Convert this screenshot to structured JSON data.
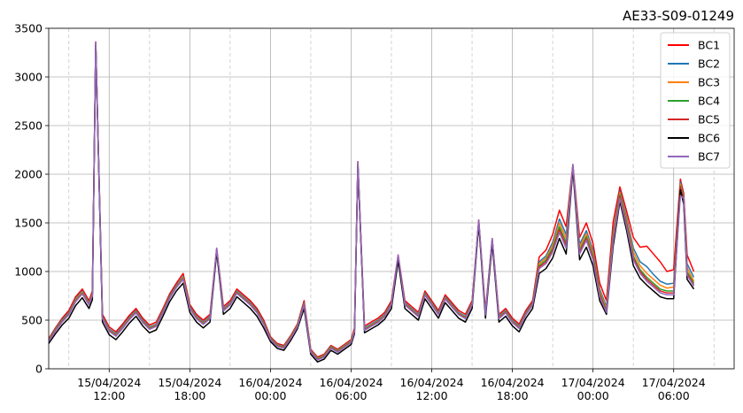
{
  "chart_data": {
    "type": "line",
    "title": "AE33-S09-01249",
    "xlabel": "",
    "ylabel": "",
    "x_range": [
      "2024-04-15 07:30",
      "2024-04-17 10:30"
    ],
    "ylim": [
      0,
      3500
    ],
    "yticks": [
      0,
      500,
      1000,
      1500,
      2000,
      2500,
      3000,
      3500
    ],
    "xticks": [
      {
        "t": "2024-04-15 12:00",
        "label": [
          "15/04/2024",
          "12:00"
        ]
      },
      {
        "t": "2024-04-15 18:00",
        "label": [
          "15/04/2024",
          "18:00"
        ]
      },
      {
        "t": "2024-04-16 00:00",
        "label": [
          "16/04/2024",
          "00:00"
        ]
      },
      {
        "t": "2024-04-16 06:00",
        "label": [
          "16/04/2024",
          "06:00"
        ]
      },
      {
        "t": "2024-04-16 12:00",
        "label": [
          "16/04/2024",
          "12:00"
        ]
      },
      {
        "t": "2024-04-16 18:00",
        "label": [
          "16/04/2024",
          "18:00"
        ]
      },
      {
        "t": "2024-04-17 00:00",
        "label": [
          "17/04/2024",
          "00:00"
        ]
      },
      {
        "t": "2024-04-17 06:00",
        "label": [
          "17/04/2024",
          "06:00"
        ]
      }
    ],
    "minor_grid_times": [
      "2024-04-15 09:00",
      "2024-04-15 15:00",
      "2024-04-15 21:00",
      "2024-04-16 03:00",
      "2024-04-16 09:00",
      "2024-04-16 15:00",
      "2024-04-16 21:00",
      "2024-04-17 03:00",
      "2024-04-17 09:00"
    ],
    "grid": true,
    "legend_position": "top-right",
    "x": [
      "2024-04-15 07:30",
      "2024-04-15 08:00",
      "2024-04-15 08:30",
      "2024-04-15 09:00",
      "2024-04-15 09:30",
      "2024-04-15 10:00",
      "2024-04-15 10:30",
      "2024-04-15 10:45",
      "2024-04-15 11:00",
      "2024-04-15 11:30",
      "2024-04-15 12:00",
      "2024-04-15 12:30",
      "2024-04-15 13:00",
      "2024-04-15 13:30",
      "2024-04-15 14:00",
      "2024-04-15 14:30",
      "2024-04-15 15:00",
      "2024-04-15 15:30",
      "2024-04-15 16:00",
      "2024-04-15 16:30",
      "2024-04-15 17:00",
      "2024-04-15 17:30",
      "2024-04-15 18:00",
      "2024-04-15 18:30",
      "2024-04-15 19:00",
      "2024-04-15 19:30",
      "2024-04-15 20:00",
      "2024-04-15 20:30",
      "2024-04-15 21:00",
      "2024-04-15 21:30",
      "2024-04-15 22:00",
      "2024-04-15 22:30",
      "2024-04-15 23:00",
      "2024-04-15 23:30",
      "2024-04-16 00:00",
      "2024-04-16 00:30",
      "2024-04-16 01:00",
      "2024-04-16 01:30",
      "2024-04-16 02:00",
      "2024-04-16 02:30",
      "2024-04-16 03:00",
      "2024-04-16 03:30",
      "2024-04-16 04:00",
      "2024-04-16 04:30",
      "2024-04-16 05:00",
      "2024-04-16 05:30",
      "2024-04-16 06:00",
      "2024-04-16 06:15",
      "2024-04-16 06:30",
      "2024-04-16 07:00",
      "2024-04-16 07:30",
      "2024-04-16 08:00",
      "2024-04-16 08:30",
      "2024-04-16 09:00",
      "2024-04-16 09:30",
      "2024-04-16 10:00",
      "2024-04-16 10:30",
      "2024-04-16 11:00",
      "2024-04-16 11:30",
      "2024-04-16 12:00",
      "2024-04-16 12:30",
      "2024-04-16 13:00",
      "2024-04-16 13:30",
      "2024-04-16 14:00",
      "2024-04-16 14:30",
      "2024-04-16 15:00",
      "2024-04-16 15:30",
      "2024-04-16 16:00",
      "2024-04-16 16:30",
      "2024-04-16 17:00",
      "2024-04-16 17:30",
      "2024-04-16 18:00",
      "2024-04-16 18:30",
      "2024-04-16 19:00",
      "2024-04-16 19:30",
      "2024-04-16 20:00",
      "2024-04-16 20:30",
      "2024-04-16 21:00",
      "2024-04-16 21:30",
      "2024-04-16 22:00",
      "2024-04-16 22:30",
      "2024-04-16 23:00",
      "2024-04-16 23:30",
      "2024-04-17 00:00",
      "2024-04-17 00:30",
      "2024-04-17 01:00",
      "2024-04-17 01:30",
      "2024-04-17 02:00",
      "2024-04-17 02:30",
      "2024-04-17 03:00",
      "2024-04-17 03:30",
      "2024-04-17 04:00",
      "2024-04-17 04:30",
      "2024-04-17 05:00",
      "2024-04-17 05:30",
      "2024-04-17 06:00",
      "2024-04-17 06:30",
      "2024-04-17 06:45",
      "2024-04-17 07:00",
      "2024-04-17 07:30"
    ],
    "series": [
      {
        "name": "BC1",
        "color": "#ff0000",
        "values": [
          310,
          420,
          520,
          600,
          740,
          820,
          700,
          800,
          3360,
          560,
          430,
          380,
          460,
          550,
          620,
          520,
          450,
          480,
          620,
          770,
          880,
          980,
          660,
          560,
          500,
          560,
          1240,
          640,
          700,
          820,
          760,
          700,
          620,
          500,
          330,
          260,
          240,
          340,
          460,
          700,
          200,
          120,
          150,
          240,
          200,
          250,
          300,
          420,
          2130,
          440,
          480,
          520,
          580,
          700,
          1170,
          700,
          640,
          580,
          800,
          700,
          600,
          760,
          680,
          600,
          560,
          700,
          1530,
          600,
          1340,
          560,
          620,
          520,
          460,
          600,
          700,
          1150,
          1220,
          1380,
          1630,
          1460,
          2100,
          1350,
          1500,
          1290,
          880,
          700,
          1510,
          1870,
          1620,
          1350,
          1250,
          1260,
          1180,
          1100,
          1000,
          1020,
          1950,
          1800,
          1170,
          1000
        ]
      },
      {
        "name": "BC2",
        "color": "#1f77b4",
        "values": [
          300,
          410,
          505,
          580,
          720,
          800,
          680,
          780,
          3350,
          540,
          410,
          360,
          440,
          530,
          600,
          500,
          430,
          460,
          600,
          750,
          860,
          950,
          640,
          540,
          480,
          540,
          1230,
          620,
          680,
          800,
          740,
          680,
          600,
          480,
          320,
          250,
          230,
          330,
          450,
          680,
          190,
          110,
          140,
          230,
          190,
          240,
          290,
          400,
          2120,
          420,
          460,
          500,
          560,
          680,
          1160,
          680,
          620,
          560,
          780,
          680,
          580,
          740,
          660,
          580,
          540,
          680,
          1520,
          580,
          1330,
          540,
          600,
          500,
          440,
          580,
          680,
          1100,
          1160,
          1300,
          1540,
          1380,
          2090,
          1280,
          1420,
          1220,
          820,
          640,
          1410,
          1830,
          1560,
          1240,
          1100,
          1050,
          970,
          900,
          870,
          880,
          1920,
          1770,
          1080,
          940
        ]
      },
      {
        "name": "BC3",
        "color": "#ff7f0e",
        "values": [
          295,
          400,
          495,
          570,
          710,
          790,
          670,
          770,
          3345,
          530,
          400,
          350,
          430,
          520,
          590,
          490,
          420,
          450,
          590,
          740,
          850,
          940,
          630,
          530,
          470,
          530,
          1225,
          610,
          670,
          790,
          730,
          670,
          590,
          470,
          315,
          245,
          225,
          325,
          445,
          670,
          185,
          105,
          135,
          225,
          185,
          235,
          285,
          395,
          2115,
          410,
          450,
          490,
          550,
          670,
          1150,
          670,
          610,
          550,
          770,
          670,
          570,
          730,
          650,
          570,
          530,
          670,
          1515,
          570,
          1320,
          530,
          590,
          490,
          430,
          570,
          670,
          1080,
          1140,
          1270,
          1500,
          1340,
          2080,
          1250,
          1390,
          1190,
          800,
          620,
          1380,
          1810,
          1530,
          1200,
          1060,
          980,
          920,
          860,
          830,
          840,
          1900,
          1750,
          1040,
          900
        ]
      },
      {
        "name": "BC4",
        "color": "#2ca02c",
        "values": [
          290,
          395,
          490,
          565,
          700,
          780,
          665,
          760,
          3340,
          525,
          395,
          345,
          425,
          515,
          585,
          485,
          415,
          445,
          585,
          735,
          845,
          930,
          625,
          525,
          465,
          525,
          1220,
          605,
          665,
          785,
          725,
          665,
          585,
          465,
          310,
          240,
          220,
          320,
          440,
          665,
          180,
          100,
          130,
          220,
          180,
          230,
          280,
          390,
          2110,
          405,
          445,
          485,
          545,
          665,
          1145,
          665,
          605,
          545,
          765,
          665,
          565,
          725,
          645,
          565,
          525,
          665,
          1510,
          565,
          1315,
          525,
          585,
          485,
          425,
          565,
          665,
          1060,
          1120,
          1240,
          1460,
          1300,
          2075,
          1220,
          1360,
          1160,
          780,
          600,
          1350,
          1790,
          1500,
          1160,
          1020,
          940,
          880,
          820,
          800,
          800,
          1880,
          1730,
          1000,
          880
        ]
      },
      {
        "name": "BC5",
        "color": "#d62728",
        "values": [
          285,
          390,
          485,
          560,
          695,
          775,
          660,
          755,
          3338,
          520,
          390,
          340,
          420,
          510,
          580,
          480,
          410,
          440,
          580,
          730,
          840,
          925,
          620,
          520,
          460,
          520,
          1218,
          600,
          660,
          780,
          720,
          660,
          580,
          460,
          305,
          235,
          215,
          315,
          435,
          660,
          175,
          95,
          125,
          215,
          175,
          225,
          275,
          385,
          2108,
          400,
          440,
          480,
          540,
          660,
          1140,
          660,
          600,
          540,
          760,
          660,
          560,
          720,
          640,
          560,
          520,
          660,
          1508,
          560,
          1312,
          520,
          580,
          480,
          420,
          560,
          660,
          1045,
          1100,
          1220,
          1430,
          1270,
          2072,
          1200,
          1340,
          1140,
          760,
          590,
          1330,
          1770,
          1480,
          1140,
          1000,
          920,
          860,
          800,
          780,
          780,
          1870,
          1720,
          980,
          860
        ]
      },
      {
        "name": "BC6",
        "color": "#000000",
        "values": [
          260,
          360,
          450,
          520,
          650,
          730,
          620,
          710,
          3330,
          480,
          350,
          300,
          380,
          470,
          540,
          440,
          370,
          400,
          540,
          690,
          800,
          880,
          580,
          480,
          420,
          480,
          1200,
          560,
          620,
          740,
          680,
          620,
          540,
          420,
          280,
          210,
          190,
          290,
          410,
          620,
          150,
          70,
          100,
          190,
          150,
          200,
          250,
          360,
          2090,
          370,
          410,
          450,
          510,
          620,
          1110,
          620,
          560,
          500,
          720,
          620,
          520,
          680,
          600,
          520,
          480,
          620,
          1490,
          520,
          1290,
          480,
          540,
          440,
          380,
          520,
          620,
          980,
          1030,
          1140,
          1340,
          1180,
          2050,
          1120,
          1250,
          1060,
          700,
          560,
          1260,
          1720,
          1420,
          1060,
          930,
          860,
          800,
          740,
          720,
          720,
          1840,
          1690,
          920,
          820
        ]
      },
      {
        "name": "BC7",
        "color": "#9467bd",
        "values": [
          280,
          385,
          480,
          555,
          690,
          770,
          655,
          750,
          3360,
          515,
          385,
          335,
          415,
          505,
          575,
          475,
          405,
          435,
          575,
          725,
          835,
          920,
          615,
          515,
          455,
          515,
          1240,
          595,
          655,
          775,
          715,
          655,
          575,
          455,
          300,
          230,
          210,
          310,
          430,
          655,
          170,
          90,
          120,
          210,
          170,
          220,
          270,
          380,
          2130,
          395,
          435,
          475,
          535,
          655,
          1170,
          655,
          595,
          535,
          755,
          655,
          555,
          715,
          635,
          555,
          515,
          655,
          1530,
          555,
          1340,
          515,
          575,
          475,
          415,
          555,
          655,
          1030,
          1080,
          1200,
          1400,
          1240,
          2100,
          1180,
          1320,
          1120,
          740,
          580,
          1310,
          1750,
          1460,
          1120,
          980,
          900,
          840,
          780,
          760,
          760,
          1780,
          1750,
          960,
          850
        ]
      }
    ]
  }
}
